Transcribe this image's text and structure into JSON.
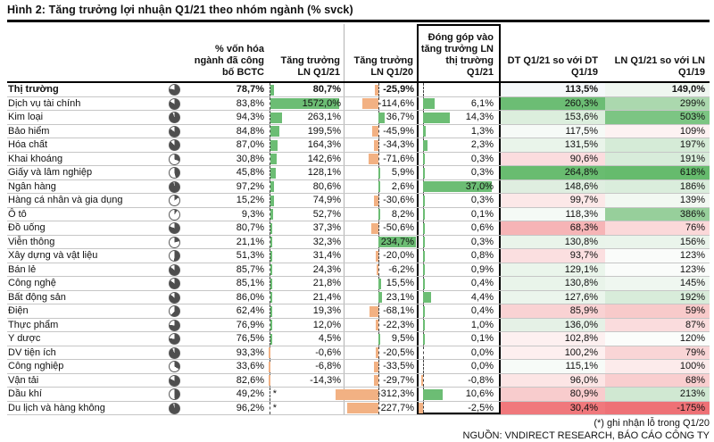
{
  "colors": {
    "positive_bar": "#6cbd74",
    "negative_bar": "#f2b183",
    "ball_fill": "#4e4e4e",
    "ball_ring": "#5b5b5b"
  },
  "footnote": "(*) ghi nhận lỗ trong Q1/20",
  "source": "NGUỒN: VNDIRECT RESEARCH, BÁO CÁO CÔNG TY",
  "chart_data": {
    "type": "table",
    "title": "Hình 2: Tăng trưởng lợi nhuận Q1/21 theo nhóm ngành (% svck)",
    "headers": {
      "cap": "% vốn hóa ngành đã công bố BCTC",
      "q21": "Tăng trưởng LN Q1/21",
      "q20": "Tăng trưởng LN Q1/20",
      "contrib": "Đóng góp vào tăng trưởng LN thị trường Q1/21",
      "dt": "DT Q1/21 so với DT Q1/19",
      "ln": "LN Q1/21 so với LN Q1/19"
    },
    "bar_ranges": {
      "q21_max": 1572.0,
      "q20_min": -312.3,
      "q20_max": 234.7,
      "contrib_max": 37.0
    },
    "rows": [
      {
        "name": "Thị trường",
        "bold": true,
        "ball": 78.7,
        "cap": "78,7%",
        "ast": false,
        "q21": 80.7,
        "q21_label": "80,7%",
        "q20": -25.9,
        "q20_label": "-25,9%",
        "contrib": null,
        "contrib_label": "",
        "dt": "113,5%",
        "dt_bg": "#f5f8fa",
        "ln": "149,0%",
        "ln_bg": "#eff6f0"
      },
      {
        "name": "Dịch vụ tài chính",
        "bold": false,
        "ball": 83.8,
        "cap": "83,8%",
        "ast": false,
        "q21": 1572.0,
        "q21_label": "1572,0%",
        "q20": -114.6,
        "q20_label": "-114,6%",
        "contrib": 6.1,
        "contrib_label": "6,1%",
        "dt": "260,3%",
        "dt_bg": "#6cbd74",
        "ln": "299%",
        "ln_bg": "#abd8ae"
      },
      {
        "name": "Kim loại",
        "bold": false,
        "ball": 94.3,
        "cap": "94,3%",
        "ast": false,
        "q21": 263.1,
        "q21_label": "263,1%",
        "q20": 36.7,
        "q20_label": "36,7%",
        "contrib": 14.3,
        "contrib_label": "14,3%",
        "dt": "153,6%",
        "dt_bg": "#dceedd",
        "ln": "503%",
        "ln_bg": "#7cc583"
      },
      {
        "name": "Bảo hiểm",
        "bold": false,
        "ball": 84.8,
        "cap": "84,8%",
        "ast": false,
        "q21": 199.5,
        "q21_label": "199,5%",
        "q20": -45.9,
        "q20_label": "-45,9%",
        "contrib": 1.3,
        "contrib_label": "1,3%",
        "dt": "117,5%",
        "dt_bg": "#f6faf7",
        "ln": "109%",
        "ln_bg": "#fdf2f2"
      },
      {
        "name": "Hóa chất",
        "bold": false,
        "ball": 87.0,
        "cap": "87,0%",
        "ast": false,
        "q21": 164.3,
        "q21_label": "164,3%",
        "q20": -34.3,
        "q20_label": "-34,3%",
        "contrib": 2.3,
        "contrib_label": "2,3%",
        "dt": "131,5%",
        "dt_bg": "#e9f4ea",
        "ln": "197%",
        "ln_bg": "#d5ebd7"
      },
      {
        "name": "Khai khoáng",
        "bold": false,
        "ball": 30.8,
        "cap": "30,8%",
        "ast": false,
        "q21": 142.6,
        "q21_label": "142,6%",
        "q20": -71.6,
        "q20_label": "-71,6%",
        "contrib": 0.3,
        "contrib_label": "0,3%",
        "dt": "90,6%",
        "dt_bg": "#fbdcde",
        "ln": "191%",
        "ln_bg": "#d8ecda"
      },
      {
        "name": "Giấy và lâm nghiệp",
        "bold": false,
        "ball": 45.8,
        "cap": "45,8%",
        "ast": false,
        "q21": 128.1,
        "q21_label": "128,1%",
        "q20": 5.9,
        "q20_label": "5,9%",
        "contrib": 0.3,
        "contrib_label": "0,3%",
        "dt": "264,8%",
        "dt_bg": "#69bc70",
        "ln": "618%",
        "ln_bg": "#66bb6d"
      },
      {
        "name": "Ngân hàng",
        "bold": false,
        "ball": 97.2,
        "cap": "97,2%",
        "ast": false,
        "q21": 80.6,
        "q21_label": "80,6%",
        "q20": 2.6,
        "q20_label": "2,6%",
        "contrib": 37.0,
        "contrib_label": "37,0%",
        "dt": "148,6%",
        "dt_bg": "#dfeee0",
        "ln": "186%",
        "ln_bg": "#daeddc"
      },
      {
        "name": "Hàng cá nhân và gia dụng",
        "bold": false,
        "ball": 15.2,
        "cap": "15,2%",
        "ast": false,
        "q21": 74.9,
        "q21_label": "74,9%",
        "q20": -30.6,
        "q20_label": "-30,6%",
        "contrib": 0.3,
        "contrib_label": "0,3%",
        "dt": "99,7%",
        "dt_bg": "#fce8e8",
        "ln": "139%",
        "ln_bg": "#f2f8f2"
      },
      {
        "name": "Ô tô",
        "bold": false,
        "ball": 9.3,
        "cap": "9,3%",
        "ast": false,
        "q21": 52.7,
        "q21_label": "52,7%",
        "q20": 8.2,
        "q20_label": "8,2%",
        "contrib": 0.1,
        "contrib_label": "0,1%",
        "dt": "118,3%",
        "dt_bg": "#f5faf6",
        "ln": "386%",
        "ln_bg": "#97cf9b"
      },
      {
        "name": "Đồ uống",
        "bold": false,
        "ball": 80.7,
        "cap": "80,7%",
        "ast": false,
        "q21": 37.3,
        "q21_label": "37,3%",
        "q20": -50.6,
        "q20_label": "-50,6%",
        "contrib": 0.6,
        "contrib_label": "0,6%",
        "dt": "68,3%",
        "dt_bg": "#f6b4b6",
        "ln": "76%",
        "ln_bg": "#fbd8d9"
      },
      {
        "name": "Viễn thông",
        "bold": false,
        "ball": 21.1,
        "cap": "21,1%",
        "ast": false,
        "q21": 32.3,
        "q21_label": "32,3%",
        "q20": 234.7,
        "q20_label": "234,7%",
        "contrib": 0.3,
        "contrib_label": "0,3%",
        "dt": "130,8%",
        "dt_bg": "#e9f4ea",
        "ln": "156%",
        "ln_bg": "#eaf4eb"
      },
      {
        "name": "Xây dựng và vật liệu",
        "bold": false,
        "ball": 51.3,
        "cap": "51,3%",
        "ast": false,
        "q21": 31.4,
        "q21_label": "31,4%",
        "q20": -20.0,
        "q20_label": "-20,0%",
        "contrib": 0.8,
        "contrib_label": "0,8%",
        "dt": "93,7%",
        "dt_bg": "#fbdfe0",
        "ln": "123%",
        "ln_bg": "#fafcfa"
      },
      {
        "name": "Bán lẻ",
        "bold": false,
        "ball": 85.7,
        "cap": "85,7%",
        "ast": false,
        "q21": 24.3,
        "q21_label": "24,3%",
        "q20": -6.2,
        "q20_label": "-6,2%",
        "contrib": 0.9,
        "contrib_label": "0,9%",
        "dt": "129,1%",
        "dt_bg": "#eaf5eb",
        "ln": "123%",
        "ln_bg": "#fafcfa"
      },
      {
        "name": "Công nghệ",
        "bold": false,
        "ball": 85.1,
        "cap": "85,1%",
        "ast": false,
        "q21": 21.8,
        "q21_label": "21,8%",
        "q20": 15.5,
        "q20_label": "15,5%",
        "contrib": 0.4,
        "contrib_label": "0,4%",
        "dt": "130,8%",
        "dt_bg": "#e9f4ea",
        "ln": "145%",
        "ln_bg": "#eff7f0"
      },
      {
        "name": "Bất động sản",
        "bold": false,
        "ball": 86.0,
        "cap": "86,0%",
        "ast": false,
        "q21": 21.4,
        "q21_label": "21,4%",
        "q20": 23.1,
        "q20_label": "23,1%",
        "contrib": 4.4,
        "contrib_label": "4,4%",
        "dt": "127,6%",
        "dt_bg": "#ebf5ec",
        "ln": "192%",
        "ln_bg": "#d8ecda"
      },
      {
        "name": "Điện",
        "bold": false,
        "ball": 62.4,
        "cap": "62,4%",
        "ast": false,
        "q21": 19.3,
        "q21_label": "19,3%",
        "q20": -68.1,
        "q20_label": "-68,1%",
        "contrib": 0.4,
        "contrib_label": "0,4%",
        "dt": "85,9%",
        "dt_bg": "#f9d2d3",
        "ln": "59%",
        "ln_bg": "#f8caca"
      },
      {
        "name": "Thực phẩm",
        "bold": false,
        "ball": 76.9,
        "cap": "76,9%",
        "ast": false,
        "q21": 12.0,
        "q21_label": "12,0%",
        "q20": -22.3,
        "q20_label": "-22,3%",
        "contrib": 1.0,
        "contrib_label": "1,0%",
        "dt": "136,0%",
        "dt_bg": "#e5f1e6",
        "ln": "87%",
        "ln_bg": "#fadcdd"
      },
      {
        "name": "Y dược",
        "bold": false,
        "ball": 76.5,
        "cap": "76,5%",
        "ast": false,
        "q21": 4.5,
        "q21_label": "4,5%",
        "q20": 9.5,
        "q20_label": "9,5%",
        "contrib": 0.1,
        "contrib_label": "0,1%",
        "dt": "102,8%",
        "dt_bg": "#fdf0f0",
        "ln": "120%",
        "ln_bg": "#fbfdfb"
      },
      {
        "name": "DV tiện ích",
        "bold": false,
        "ball": 93.3,
        "cap": "93,3%",
        "ast": false,
        "q21": -0.6,
        "q21_label": "-0,6%",
        "q20": -20.5,
        "q20_label": "-20,5%",
        "contrib": 0.0,
        "contrib_label": "0,0%",
        "dt": "100,2%",
        "dt_bg": "#fdefef",
        "ln": "79%",
        "ln_bg": "#f9d5d6"
      },
      {
        "name": "Công nghiệp",
        "bold": false,
        "ball": 33.6,
        "cap": "33,6%",
        "ast": false,
        "q21": -6.8,
        "q21_label": "-6,8%",
        "q20": -33.5,
        "q20_label": "-33,5%",
        "contrib": 0.0,
        "contrib_label": "0,0%",
        "dt": "115,1%",
        "dt_bg": "#f7fbf8",
        "ln": "100%",
        "ln_bg": "#fcebeb"
      },
      {
        "name": "Vận tải",
        "bold": false,
        "ball": 82.6,
        "cap": "82,6%",
        "ast": false,
        "q21": -14.3,
        "q21_label": "-14,3%",
        "q20": -29.7,
        "q20_label": "-29,7%",
        "contrib": -0.8,
        "contrib_label": "-0,8%",
        "dt": "96,0%",
        "dt_bg": "#fce5e5",
        "ln": "68%",
        "ln_bg": "#f9cecf"
      },
      {
        "name": "Dầu khí",
        "bold": false,
        "ball": 49.2,
        "cap": "49,2%",
        "ast": true,
        "q21": null,
        "q21_label": "",
        "q20": -312.3,
        "q20_label": "-312,3%",
        "contrib": 10.6,
        "contrib_label": "10,6%",
        "dt": "80,9%",
        "dt_bg": "#f8cccd",
        "ln": "213%",
        "ln_bg": "#d0e8d2"
      },
      {
        "name": "Du lịch và hàng không",
        "bold": false,
        "ball": 96.2,
        "cap": "96,2%",
        "ast": true,
        "q21": null,
        "q21_label": "",
        "q20": -227.7,
        "q20_label": "-227,7%",
        "contrib": -2.5,
        "contrib_label": "-2,5%",
        "dt": "30,4%",
        "dt_bg": "#f0787c",
        "ln": "-175%",
        "ln_bg": "#ee7176"
      }
    ]
  }
}
